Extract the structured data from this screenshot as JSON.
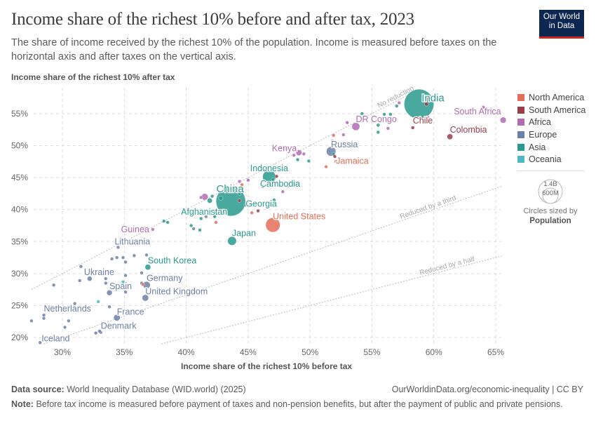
{
  "header": {
    "title": "Income share of the richest 10% before and after tax, 2023",
    "subtitle": "The share of income received by the richest 10% of the population. Income is measured before taxes on the horizontal axis and after taxes on the vertical axis.",
    "logo": [
      "Our World",
      "in Data"
    ]
  },
  "legend": {
    "items": [
      {
        "label": "North America",
        "color": "#e56e5a"
      },
      {
        "label": "South America",
        "color": "#9a3d48"
      },
      {
        "label": "Africa",
        "color": "#b16cb1"
      },
      {
        "label": "Europe",
        "color": "#6d80a8"
      },
      {
        "label": "Asia",
        "color": "#2a9a8e"
      },
      {
        "label": "Oceania",
        "color": "#4fb7c1"
      }
    ],
    "size_big": "1.4B",
    "size_small": "600M",
    "size_caption": "Circles sized by",
    "size_var": "Population"
  },
  "footer": {
    "source_label": "Data source:",
    "source": "World Inequality Database (WID.world) (2025)",
    "url": "OurWorldinData.org/economic-inequality | CC BY",
    "note_label": "Note:",
    "note": "Before tax income is measured before payment of taxes and non-pension benefits, but after the payment of public and private pensions."
  },
  "chart_data": {
    "type": "scatter",
    "xlabel": "Income share of the richest 10% before tax",
    "ylabel": "Income share of the richest 10% after tax",
    "xlim": [
      27.5,
      65.5
    ],
    "ylim": [
      19,
      58
    ],
    "xticks": [
      "30%",
      "35%",
      "40%",
      "45%",
      "50%",
      "55%",
      "60%",
      "65%"
    ],
    "yticks": [
      "20%",
      "25%",
      "30%",
      "35%",
      "40%",
      "45%",
      "50%",
      "55%"
    ],
    "grid": true,
    "legend_position": "right",
    "reference_lines": [
      {
        "label": "No reduction",
        "slope": 1
      },
      {
        "label": "Reduced by a third",
        "slope": 0.6667
      },
      {
        "label": "Reduced by a half",
        "slope": 0.5
      }
    ],
    "points": [
      {
        "name": "India",
        "region": "Asia",
        "x": 58.8,
        "y": 56.5,
        "pop": 1430,
        "label": true
      },
      {
        "name": "China",
        "region": "Asia",
        "x": 43.6,
        "y": 41.3,
        "pop": 1410,
        "label": true
      },
      {
        "name": "United States",
        "region": "North America",
        "x": 47.0,
        "y": 37.6,
        "pop": 335,
        "label": true
      },
      {
        "name": "Indonesia",
        "region": "Asia",
        "x": 46.7,
        "y": 45.1,
        "pop": 277,
        "label": true
      },
      {
        "name": "South Africa",
        "region": "Africa",
        "x": 65.6,
        "y": 54.0,
        "pop": 60,
        "label": true
      },
      {
        "name": "Colombia",
        "region": "South America",
        "x": 61.3,
        "y": 51.4,
        "pop": 52,
        "label": true
      },
      {
        "name": "Chile",
        "region": "South America",
        "x": 58.3,
        "y": 52.8,
        "pop": 19,
        "label": true
      },
      {
        "name": "DR Congo",
        "region": "Africa",
        "x": 53.7,
        "y": 53.0,
        "pop": 102,
        "label": true
      },
      {
        "name": "Russia",
        "region": "Europe",
        "x": 51.7,
        "y": 49.1,
        "pop": 144,
        "label": true
      },
      {
        "name": "Kenya",
        "region": "Africa",
        "x": 49.1,
        "y": 48.9,
        "pop": 55,
        "label": true
      },
      {
        "name": "Jamaica",
        "region": "North America",
        "x": 52.1,
        "y": 47.5,
        "pop": 3,
        "label": true
      },
      {
        "name": "Cambodia",
        "region": "Asia",
        "x": 46.2,
        "y": 43.6,
        "pop": 17,
        "label": true
      },
      {
        "name": "Georgia",
        "region": "Asia",
        "x": 44.8,
        "y": 40.7,
        "pop": 4,
        "label": true
      },
      {
        "name": "Afghanistan",
        "region": "Asia",
        "x": 41.9,
        "y": 41.4,
        "pop": 42,
        "label": true
      },
      {
        "name": "Guinea",
        "region": "Africa",
        "x": 37.3,
        "y": 36.9,
        "pop": 14,
        "label": true
      },
      {
        "name": "Japan",
        "region": "Asia",
        "x": 43.7,
        "y": 35.1,
        "pop": 124,
        "label": true
      },
      {
        "name": "Lithuania",
        "region": "Europe",
        "x": 34.5,
        "y": 34.1,
        "pop": 3,
        "label": true
      },
      {
        "name": "South Korea",
        "region": "Asia",
        "x": 36.9,
        "y": 31.0,
        "pop": 52,
        "label": true
      },
      {
        "name": "Ukraine",
        "region": "Europe",
        "x": 32.2,
        "y": 29.2,
        "pop": 38,
        "label": true
      },
      {
        "name": "Germany",
        "region": "Europe",
        "x": 36.8,
        "y": 28.2,
        "pop": 84,
        "label": true
      },
      {
        "name": "Spain",
        "region": "Europe",
        "x": 33.8,
        "y": 27.0,
        "pop": 48,
        "label": true
      },
      {
        "name": "United Kingdom",
        "region": "Europe",
        "x": 36.7,
        "y": 26.2,
        "pop": 68,
        "label": true
      },
      {
        "name": "Netherlands",
        "region": "Europe",
        "x": 28.5,
        "y": 23.5,
        "pop": 18,
        "label": true
      },
      {
        "name": "France",
        "region": "Europe",
        "x": 34.4,
        "y": 23.1,
        "pop": 68,
        "label": true
      },
      {
        "name": "Denmark",
        "region": "Europe",
        "x": 33.1,
        "y": 20.8,
        "pop": 6,
        "label": true
      },
      {
        "name": "Iceland",
        "region": "Europe",
        "x": 28.2,
        "y": 19.2,
        "pop": 0.4,
        "label": true
      },
      {
        "region": "North America",
        "x": 59.6,
        "y": 57.5,
        "pop": 40
      },
      {
        "region": "South America",
        "x": 59.4,
        "y": 56.5,
        "pop": 25
      },
      {
        "region": "Africa",
        "x": 57.2,
        "y": 56.7,
        "pop": 10
      },
      {
        "region": "Africa",
        "x": 59.5,
        "y": 54.5,
        "pop": 8
      },
      {
        "region": "Asia",
        "x": 57.0,
        "y": 56.2,
        "pop": 2
      },
      {
        "region": "Africa",
        "x": 64.0,
        "y": 56.0,
        "pop": 2
      },
      {
        "region": "Asia",
        "x": 55.5,
        "y": 53.2,
        "pop": 20
      },
      {
        "region": "Asia",
        "x": 55.5,
        "y": 52.1,
        "pop": 6
      },
      {
        "region": "Asia",
        "x": 54.2,
        "y": 55.0,
        "pop": 4
      },
      {
        "region": "Asia",
        "x": 56.0,
        "y": 54.9,
        "pop": 2
      },
      {
        "region": "Asia",
        "x": 56.5,
        "y": 54.9,
        "pop": 2
      },
      {
        "region": "Africa",
        "x": 56.3,
        "y": 52.7,
        "pop": 3
      },
      {
        "region": "Africa",
        "x": 52.7,
        "y": 51.7,
        "pop": 12
      },
      {
        "region": "Africa",
        "x": 53.0,
        "y": 53.6,
        "pop": 4
      },
      {
        "region": "Africa",
        "x": 51.8,
        "y": 50.7,
        "pop": 3
      },
      {
        "region": "North America",
        "x": 51.9,
        "y": 51.6,
        "pop": 2
      },
      {
        "region": "South America",
        "x": 52.0,
        "y": 48.3,
        "pop": 8
      },
      {
        "region": "Asia",
        "x": 51.9,
        "y": 48.7,
        "pop": 12
      },
      {
        "region": "North America",
        "x": 51.3,
        "y": 46.7,
        "pop": 2
      },
      {
        "region": "Africa",
        "x": 48.7,
        "y": 48.5,
        "pop": 3
      },
      {
        "region": "Africa",
        "x": 49.5,
        "y": 48.7,
        "pop": 3
      },
      {
        "region": "Asia",
        "x": 49.0,
        "y": 47.8,
        "pop": 3
      },
      {
        "region": "Asia",
        "x": 49.9,
        "y": 47.6,
        "pop": 3
      },
      {
        "region": "Africa",
        "x": 48.0,
        "y": 49.5,
        "pop": 3
      },
      {
        "region": "Africa",
        "x": 46.3,
        "y": 46.1,
        "pop": 2
      },
      {
        "region": "Africa",
        "x": 45.0,
        "y": 44.6,
        "pop": 8
      },
      {
        "region": "Africa",
        "x": 44.3,
        "y": 44.4,
        "pop": 6
      },
      {
        "region": "South America",
        "x": 47.3,
        "y": 45.2,
        "pop": 10
      },
      {
        "region": "Asia",
        "x": 47.0,
        "y": 44.7,
        "pop": 4
      },
      {
        "region": "Asia",
        "x": 48.2,
        "y": 43.7,
        "pop": 2
      },
      {
        "region": "Africa",
        "x": 47.8,
        "y": 42.8,
        "pop": 3
      },
      {
        "region": "Asia",
        "x": 47.1,
        "y": 41.5,
        "pop": 2
      },
      {
        "region": "Asia",
        "x": 44.3,
        "y": 42.5,
        "pop": 6
      },
      {
        "region": "North America",
        "x": 44.5,
        "y": 43.9,
        "pop": 2
      },
      {
        "region": "South America",
        "x": 44.3,
        "y": 41.4,
        "pop": 3
      },
      {
        "region": "Africa",
        "x": 41.5,
        "y": 42.0,
        "pop": 70
      },
      {
        "region": "Africa",
        "x": 41.2,
        "y": 41.9,
        "pop": 4
      },
      {
        "region": "Asia",
        "x": 42.8,
        "y": 41.8,
        "pop": 30
      },
      {
        "region": "Asia",
        "x": 42.1,
        "y": 42.1,
        "pop": 8
      },
      {
        "region": "North America",
        "x": 45.3,
        "y": 39.5,
        "pop": 4
      },
      {
        "region": "South America",
        "x": 45.8,
        "y": 39.8,
        "pop": 3
      },
      {
        "region": "Asia",
        "x": 40.4,
        "y": 39.4,
        "pop": 5
      },
      {
        "region": "Asia",
        "x": 41.2,
        "y": 38.6,
        "pop": 3
      },
      {
        "region": "Europe",
        "x": 41.6,
        "y": 38.9,
        "pop": 2
      },
      {
        "region": "Asia",
        "x": 42.3,
        "y": 38.9,
        "pop": 2
      },
      {
        "region": "North America",
        "x": 42.4,
        "y": 38.0,
        "pop": 2
      },
      {
        "region": "Asia",
        "x": 41.1,
        "y": 36.8,
        "pop": 2
      },
      {
        "region": "Asia",
        "x": 38.2,
        "y": 38.2,
        "pop": 2
      },
      {
        "region": "Asia",
        "x": 38.5,
        "y": 38.0,
        "pop": 2
      },
      {
        "region": "Europe",
        "x": 40.6,
        "y": 37.0,
        "pop": 2
      },
      {
        "region": "Asia",
        "x": 36.7,
        "y": 37.1,
        "pop": 1
      },
      {
        "region": "Asia",
        "x": 40.4,
        "y": 37.5,
        "pop": 1
      },
      {
        "region": "Europe",
        "x": 35.8,
        "y": 32.8,
        "pop": 4
      },
      {
        "region": "Europe",
        "x": 34.0,
        "y": 32.3,
        "pop": 2
      },
      {
        "region": "Europe",
        "x": 34.4,
        "y": 32.5,
        "pop": 2
      },
      {
        "region": "Europe",
        "x": 34.9,
        "y": 32.5,
        "pop": 2
      },
      {
        "region": "Europe",
        "x": 35.1,
        "y": 31.8,
        "pop": 2
      },
      {
        "region": "Europe",
        "x": 36.8,
        "y": 32.9,
        "pop": 2
      },
      {
        "region": "Europe",
        "x": 31.5,
        "y": 31.1,
        "pop": 2
      },
      {
        "region": "Europe",
        "x": 31.4,
        "y": 28.9,
        "pop": 2
      },
      {
        "region": "Europe",
        "x": 29.3,
        "y": 28.2,
        "pop": 2
      },
      {
        "region": "Europe",
        "x": 33.5,
        "y": 29.2,
        "pop": 2
      },
      {
        "region": "Europe",
        "x": 33.5,
        "y": 28.5,
        "pop": 2
      },
      {
        "region": "Europe",
        "x": 35.1,
        "y": 29.7,
        "pop": 2
      },
      {
        "region": "Europe",
        "x": 36.4,
        "y": 30.1,
        "pop": 2
      },
      {
        "region": "Europe",
        "x": 36.4,
        "y": 28.5,
        "pop": 5
      },
      {
        "region": "North America",
        "x": 36.5,
        "y": 28.3,
        "pop": 3
      },
      {
        "region": "Oceania",
        "x": 34.9,
        "y": 28.7,
        "pop": 1
      },
      {
        "region": "Europe",
        "x": 35.1,
        "y": 27.1,
        "pop": 2
      },
      {
        "region": "Oceania",
        "x": 32.9,
        "y": 25.6,
        "pop": 3
      },
      {
        "region": "Europe",
        "x": 31.0,
        "y": 25.3,
        "pop": 2
      },
      {
        "region": "Europe",
        "x": 33.8,
        "y": 24.8,
        "pop": 2
      },
      {
        "region": "Europe",
        "x": 28.5,
        "y": 23.0,
        "pop": 2
      },
      {
        "region": "Europe",
        "x": 27.5,
        "y": 22.6,
        "pop": 2
      },
      {
        "region": "Europe",
        "x": 30.5,
        "y": 22.6,
        "pop": 2
      },
      {
        "region": "Europe",
        "x": 30.2,
        "y": 21.6,
        "pop": 2
      },
      {
        "region": "Europe",
        "x": 32.7,
        "y": 20.7,
        "pop": 2
      },
      {
        "region": "Europe",
        "x": 33.0,
        "y": 21.0,
        "pop": 2
      }
    ]
  }
}
